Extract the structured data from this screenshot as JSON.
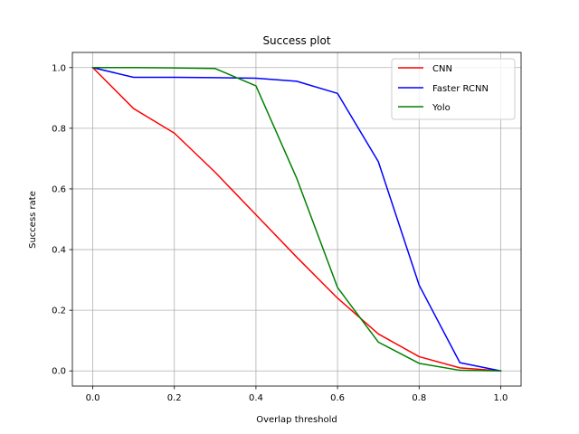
{
  "chart_data": {
    "type": "line",
    "title": "Success plot",
    "xlabel": "Overlap threshold",
    "ylabel": "Success rate",
    "xlim": [
      -0.05,
      1.05
    ],
    "ylim": [
      -0.05,
      1.05
    ],
    "grid": true,
    "legend_position": "top-right",
    "xticks": [
      0.0,
      0.2,
      0.4,
      0.6,
      0.8,
      1.0
    ],
    "xtick_labels": [
      "0.0",
      "0.2",
      "0.4",
      "0.6",
      "0.8",
      "1.0"
    ],
    "yticks": [
      0.0,
      0.2,
      0.4,
      0.6,
      0.8,
      1.0
    ],
    "ytick_labels": [
      "0.0",
      "0.2",
      "0.4",
      "0.6",
      "0.8",
      "1.0"
    ],
    "x": [
      0.0,
      0.1,
      0.2,
      0.3,
      0.4,
      0.5,
      0.6,
      0.7,
      0.8,
      0.9,
      1.0
    ],
    "series": [
      {
        "name": "CNN",
        "color": "#ff0000",
        "values": [
          1.0,
          0.865,
          0.784,
          0.655,
          0.515,
          0.375,
          0.24,
          0.122,
          0.047,
          0.01,
          0.0
        ]
      },
      {
        "name": "Faster RCNN",
        "color": "#0000ff",
        "values": [
          1.0,
          0.968,
          0.968,
          0.967,
          0.965,
          0.955,
          0.915,
          0.69,
          0.283,
          0.027,
          0.0
        ]
      },
      {
        "name": "Yolo",
        "color": "#008000",
        "values": [
          1.0,
          1.0,
          0.999,
          0.997,
          0.94,
          0.635,
          0.275,
          0.095,
          0.025,
          0.002,
          0.0
        ]
      }
    ]
  }
}
